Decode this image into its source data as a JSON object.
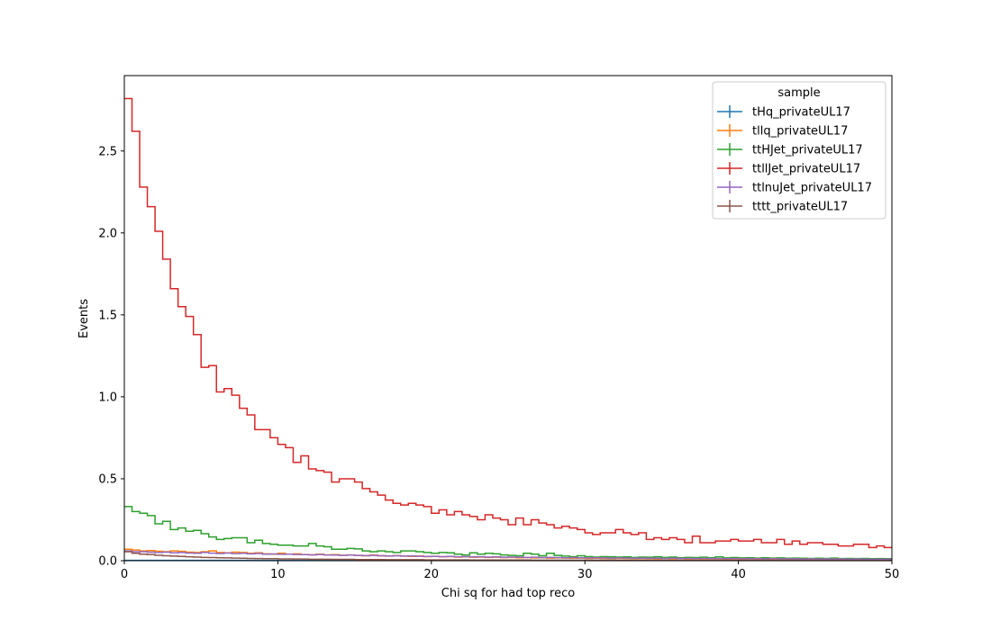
{
  "chart_data": {
    "type": "line",
    "title": "",
    "xlabel": "Chi sq for had top reco",
    "ylabel": "Events",
    "xlim": [
      0,
      50
    ],
    "ylim": [
      0,
      2.96
    ],
    "xticks": [
      0,
      10,
      20,
      30,
      40,
      50
    ],
    "yticks": [
      0.0,
      0.5,
      1.0,
      1.5,
      2.0,
      2.5
    ],
    "grid": false,
    "legend": {
      "title": "sample",
      "placement": "top-right"
    },
    "bin_width": 0.5,
    "series": [
      {
        "name": "tHq_privateUL17",
        "color": "#1f77b4",
        "values": [
          0.002,
          0.002,
          0.002,
          0.002,
          0.002,
          0.002,
          0.002,
          0.002,
          0.002,
          0.002,
          0.002,
          0.002,
          0.002,
          0.002,
          0.002,
          0.002,
          0.002,
          0.002,
          0.002,
          0.002,
          0.002,
          0.002,
          0.002,
          0.002,
          0.002,
          0.002,
          0.002,
          0.002,
          0.002,
          0.002,
          0.002,
          0.002,
          0.002,
          0.002,
          0.002,
          0.002,
          0.002,
          0.002,
          0.002,
          0.002,
          0.002,
          0.002,
          0.002,
          0.002,
          0.002,
          0.002,
          0.002,
          0.002,
          0.002,
          0.002,
          0.002,
          0.002,
          0.002,
          0.002,
          0.002,
          0.002,
          0.002,
          0.002,
          0.002,
          0.002,
          0.002,
          0.002,
          0.002,
          0.002,
          0.002,
          0.002,
          0.002,
          0.002,
          0.002,
          0.002,
          0.002,
          0.002,
          0.002,
          0.002,
          0.002,
          0.002,
          0.002,
          0.002,
          0.002,
          0.002,
          0.002,
          0.002,
          0.002,
          0.002,
          0.002,
          0.002,
          0.002,
          0.002,
          0.002,
          0.002,
          0.002,
          0.002,
          0.002,
          0.002,
          0.002,
          0.002,
          0.002,
          0.002,
          0.002,
          0.002
        ]
      },
      {
        "name": "tllq_privateUL17",
        "color": "#ff7f0e",
        "values": [
          0.07,
          0.065,
          0.06,
          0.062,
          0.058,
          0.055,
          0.06,
          0.057,
          0.052,
          0.05,
          0.055,
          0.06,
          0.05,
          0.048,
          0.052,
          0.05,
          0.045,
          0.048,
          0.042,
          0.04,
          0.045,
          0.04,
          0.042,
          0.038,
          0.036,
          0.04,
          0.035,
          0.037,
          0.033,
          0.035,
          0.032,
          0.03,
          0.034,
          0.03,
          0.028,
          0.031,
          0.028,
          0.026,
          0.029,
          0.025,
          0.026,
          0.024,
          0.025,
          0.022,
          0.024,
          0.021,
          0.022,
          0.02,
          0.021,
          0.019,
          0.02,
          0.018,
          0.019,
          0.017,
          0.018,
          0.016,
          0.017,
          0.016,
          0.015,
          0.016,
          0.014,
          0.015,
          0.014,
          0.013,
          0.014,
          0.013,
          0.012,
          0.013,
          0.012,
          0.011,
          0.012,
          0.011,
          0.012,
          0.01,
          0.011,
          0.01,
          0.011,
          0.01,
          0.009,
          0.01,
          0.009,
          0.01,
          0.009,
          0.009,
          0.008,
          0.009,
          0.008,
          0.009,
          0.008,
          0.008,
          0.007,
          0.008,
          0.007,
          0.008,
          0.007,
          0.007,
          0.007,
          0.007,
          0.006,
          0.007
        ]
      },
      {
        "name": "ttHJet_privateUL17",
        "color": "#2ca02c",
        "values": [
          0.33,
          0.3,
          0.29,
          0.275,
          0.225,
          0.24,
          0.19,
          0.2,
          0.18,
          0.185,
          0.165,
          0.145,
          0.13,
          0.135,
          0.14,
          0.14,
          0.11,
          0.125,
          0.105,
          0.1,
          0.095,
          0.095,
          0.09,
          0.09,
          0.105,
          0.09,
          0.085,
          0.07,
          0.07,
          0.075,
          0.072,
          0.06,
          0.055,
          0.06,
          0.055,
          0.05,
          0.06,
          0.06,
          0.055,
          0.05,
          0.045,
          0.05,
          0.048,
          0.04,
          0.035,
          0.048,
          0.04,
          0.045,
          0.042,
          0.035,
          0.032,
          0.03,
          0.045,
          0.04,
          0.03,
          0.045,
          0.032,
          0.028,
          0.025,
          0.03,
          0.025,
          0.022,
          0.025,
          0.024,
          0.022,
          0.023,
          0.02,
          0.022,
          0.021,
          0.024,
          0.02,
          0.022,
          0.018,
          0.02,
          0.019,
          0.021,
          0.018,
          0.023,
          0.017,
          0.019,
          0.017,
          0.018,
          0.016,
          0.018,
          0.016,
          0.017,
          0.015,
          0.016,
          0.015,
          0.014,
          0.015,
          0.014,
          0.016,
          0.013,
          0.014,
          0.013,
          0.014,
          0.012,
          0.013,
          0.012
        ]
      },
      {
        "name": "ttllJet_privateUL17",
        "color": "#d62728",
        "values": [
          2.82,
          2.62,
          2.28,
          2.16,
          2.01,
          1.84,
          1.66,
          1.55,
          1.49,
          1.38,
          1.18,
          1.19,
          1.03,
          1.05,
          1.01,
          0.93,
          0.89,
          0.8,
          0.8,
          0.75,
          0.71,
          0.69,
          0.6,
          0.64,
          0.56,
          0.55,
          0.54,
          0.48,
          0.5,
          0.5,
          0.48,
          0.44,
          0.42,
          0.4,
          0.37,
          0.35,
          0.34,
          0.35,
          0.34,
          0.33,
          0.29,
          0.31,
          0.28,
          0.3,
          0.28,
          0.27,
          0.25,
          0.28,
          0.26,
          0.25,
          0.22,
          0.26,
          0.22,
          0.25,
          0.23,
          0.22,
          0.2,
          0.21,
          0.2,
          0.19,
          0.17,
          0.16,
          0.17,
          0.17,
          0.19,
          0.17,
          0.16,
          0.17,
          0.13,
          0.14,
          0.13,
          0.14,
          0.13,
          0.11,
          0.15,
          0.11,
          0.11,
          0.12,
          0.12,
          0.13,
          0.12,
          0.12,
          0.13,
          0.11,
          0.11,
          0.13,
          0.1,
          0.12,
          0.1,
          0.11,
          0.11,
          0.1,
          0.1,
          0.09,
          0.09,
          0.1,
          0.1,
          0.08,
          0.09,
          0.08
        ]
      },
      {
        "name": "ttlnuJet_privateUL17",
        "color": "#9467bd",
        "values": [
          0.06,
          0.055,
          0.055,
          0.052,
          0.05,
          0.052,
          0.048,
          0.05,
          0.047,
          0.045,
          0.05,
          0.046,
          0.044,
          0.047,
          0.043,
          0.045,
          0.042,
          0.044,
          0.04,
          0.041,
          0.039,
          0.04,
          0.038,
          0.037,
          0.036,
          0.038,
          0.035,
          0.034,
          0.033,
          0.034,
          0.032,
          0.031,
          0.032,
          0.03,
          0.029,
          0.03,
          0.028,
          0.029,
          0.027,
          0.026,
          0.027,
          0.025,
          0.026,
          0.024,
          0.025,
          0.023,
          0.024,
          0.022,
          0.023,
          0.021,
          0.022,
          0.021,
          0.02,
          0.021,
          0.019,
          0.02,
          0.019,
          0.018,
          0.019,
          0.018,
          0.017,
          0.018,
          0.017,
          0.016,
          0.017,
          0.016,
          0.015,
          0.016,
          0.015,
          0.015,
          0.014,
          0.015,
          0.014,
          0.014,
          0.013,
          0.014,
          0.013,
          0.013,
          0.012,
          0.013,
          0.012,
          0.012,
          0.012,
          0.011,
          0.012,
          0.011,
          0.011,
          0.011,
          0.01,
          0.011,
          0.01,
          0.01,
          0.01,
          0.01,
          0.009,
          0.01,
          0.009,
          0.009,
          0.009,
          0.009
        ]
      },
      {
        "name": "tttt_privateUL17",
        "color": "#8c564b",
        "values": [
          0.055,
          0.045,
          0.04,
          0.038,
          0.033,
          0.03,
          0.028,
          0.026,
          0.024,
          0.022,
          0.02,
          0.019,
          0.018,
          0.017,
          0.016,
          0.015,
          0.014,
          0.013,
          0.012,
          0.012,
          0.011,
          0.011,
          0.01,
          0.01,
          0.009,
          0.009,
          0.009,
          0.008,
          0.008,
          0.008,
          0.007,
          0.007,
          0.007,
          0.007,
          0.006,
          0.006,
          0.006,
          0.006,
          0.006,
          0.005,
          0.005,
          0.005,
          0.005,
          0.005,
          0.005,
          0.004,
          0.004,
          0.004,
          0.004,
          0.004,
          0.004,
          0.004,
          0.004,
          0.003,
          0.003,
          0.003,
          0.003,
          0.003,
          0.003,
          0.003,
          0.003,
          0.003,
          0.003,
          0.003,
          0.002,
          0.002,
          0.002,
          0.002,
          0.002,
          0.002,
          0.002,
          0.002,
          0.002,
          0.002,
          0.002,
          0.002,
          0.002,
          0.002,
          0.002,
          0.002,
          0.002,
          0.002,
          0.002,
          0.002,
          0.002,
          0.002,
          0.002,
          0.002,
          0.002,
          0.002,
          0.002,
          0.002,
          0.002,
          0.002,
          0.002,
          0.002,
          0.002,
          0.002,
          0.002,
          0.002
        ]
      }
    ]
  }
}
